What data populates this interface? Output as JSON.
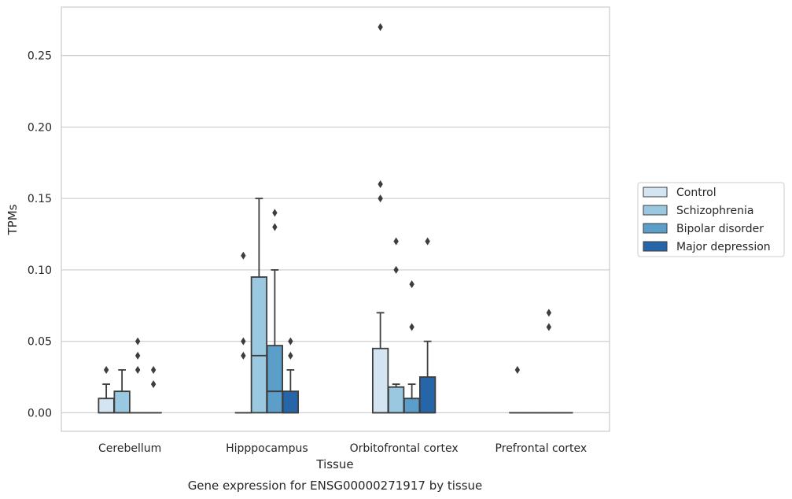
{
  "chart_data": {
    "type": "box",
    "title": "",
    "caption": "Gene expression for ENSG00000271917 by tissue",
    "xlabel": "Tissue",
    "ylabel": "TPMs",
    "ylim": [
      -0.013,
      0.284
    ],
    "yticks": [
      0.0,
      0.05,
      0.1,
      0.15,
      0.2,
      0.25
    ],
    "ytick_labels": [
      "0.00",
      "0.05",
      "0.10",
      "0.15",
      "0.20",
      "0.25"
    ],
    "grid": "horizontal",
    "legend_position": "right",
    "categories": [
      "Cerebellum",
      "Hipppocampus",
      "Orbitofrontal cortex",
      "Prefrontal cortex"
    ],
    "series": [
      {
        "name": "Control",
        "color": "#d3e4f3",
        "boxes": [
          {
            "q1": 0.0,
            "median": 0.0,
            "q3": 0.01,
            "whisker_low": 0.0,
            "whisker_high": 0.02,
            "outliers": [
              0.03
            ]
          },
          {
            "q1": 0.0,
            "median": 0.0,
            "q3": 0.0,
            "whisker_low": 0.0,
            "whisker_high": 0.0,
            "outliers": [
              0.04,
              0.05,
              0.11
            ]
          },
          {
            "q1": 0.0,
            "median": 0.0,
            "q3": 0.045,
            "whisker_low": 0.0,
            "whisker_high": 0.07,
            "outliers": [
              0.15,
              0.16,
              0.27
            ]
          },
          {
            "q1": 0.0,
            "median": 0.0,
            "q3": 0.0,
            "whisker_low": 0.0,
            "whisker_high": 0.0,
            "outliers": [
              0.03
            ]
          }
        ]
      },
      {
        "name": "Schizophrenia",
        "color": "#9ac8e0",
        "boxes": [
          {
            "q1": 0.0,
            "median": 0.0,
            "q3": 0.015,
            "whisker_low": 0.0,
            "whisker_high": 0.03,
            "outliers": []
          },
          {
            "q1": 0.0,
            "median": 0.04,
            "q3": 0.095,
            "whisker_low": 0.0,
            "whisker_high": 0.15,
            "outliers": []
          },
          {
            "q1": 0.0,
            "median": 0.0,
            "q3": 0.018,
            "whisker_low": 0.0,
            "whisker_high": 0.02,
            "outliers": [
              0.1,
              0.12
            ]
          },
          {
            "q1": 0.0,
            "median": 0.0,
            "q3": 0.0,
            "whisker_low": 0.0,
            "whisker_high": 0.0,
            "outliers": []
          }
        ]
      },
      {
        "name": "Bipolar disorder",
        "color": "#5a9ec9",
        "boxes": [
          {
            "q1": 0.0,
            "median": 0.0,
            "q3": 0.0,
            "whisker_low": 0.0,
            "whisker_high": 0.0,
            "outliers": [
              0.03,
              0.04,
              0.05
            ]
          },
          {
            "q1": 0.0,
            "median": 0.015,
            "q3": 0.047,
            "whisker_low": 0.0,
            "whisker_high": 0.1,
            "outliers": [
              0.13,
              0.14
            ]
          },
          {
            "q1": 0.0,
            "median": 0.0,
            "q3": 0.01,
            "whisker_low": 0.0,
            "whisker_high": 0.02,
            "outliers": [
              0.06,
              0.09
            ]
          },
          {
            "q1": 0.0,
            "median": 0.0,
            "q3": 0.0,
            "whisker_low": 0.0,
            "whisker_high": 0.0,
            "outliers": [
              0.06,
              0.07
            ]
          }
        ]
      },
      {
        "name": "Major depression",
        "color": "#2666a8",
        "boxes": [
          {
            "q1": 0.0,
            "median": 0.0,
            "q3": 0.0,
            "whisker_low": 0.0,
            "whisker_high": 0.0,
            "outliers": [
              0.02,
              0.03
            ]
          },
          {
            "q1": 0.0,
            "median": 0.0,
            "q3": 0.015,
            "whisker_low": 0.0,
            "whisker_high": 0.03,
            "outliers": [
              0.04,
              0.05
            ]
          },
          {
            "q1": 0.0,
            "median": 0.0,
            "q3": 0.025,
            "whisker_low": 0.0,
            "whisker_high": 0.05,
            "outliers": [
              0.12
            ]
          },
          {
            "q1": 0.0,
            "median": 0.0,
            "q3": 0.0,
            "whisker_low": 0.0,
            "whisker_high": 0.0,
            "outliers": []
          }
        ]
      }
    ]
  }
}
